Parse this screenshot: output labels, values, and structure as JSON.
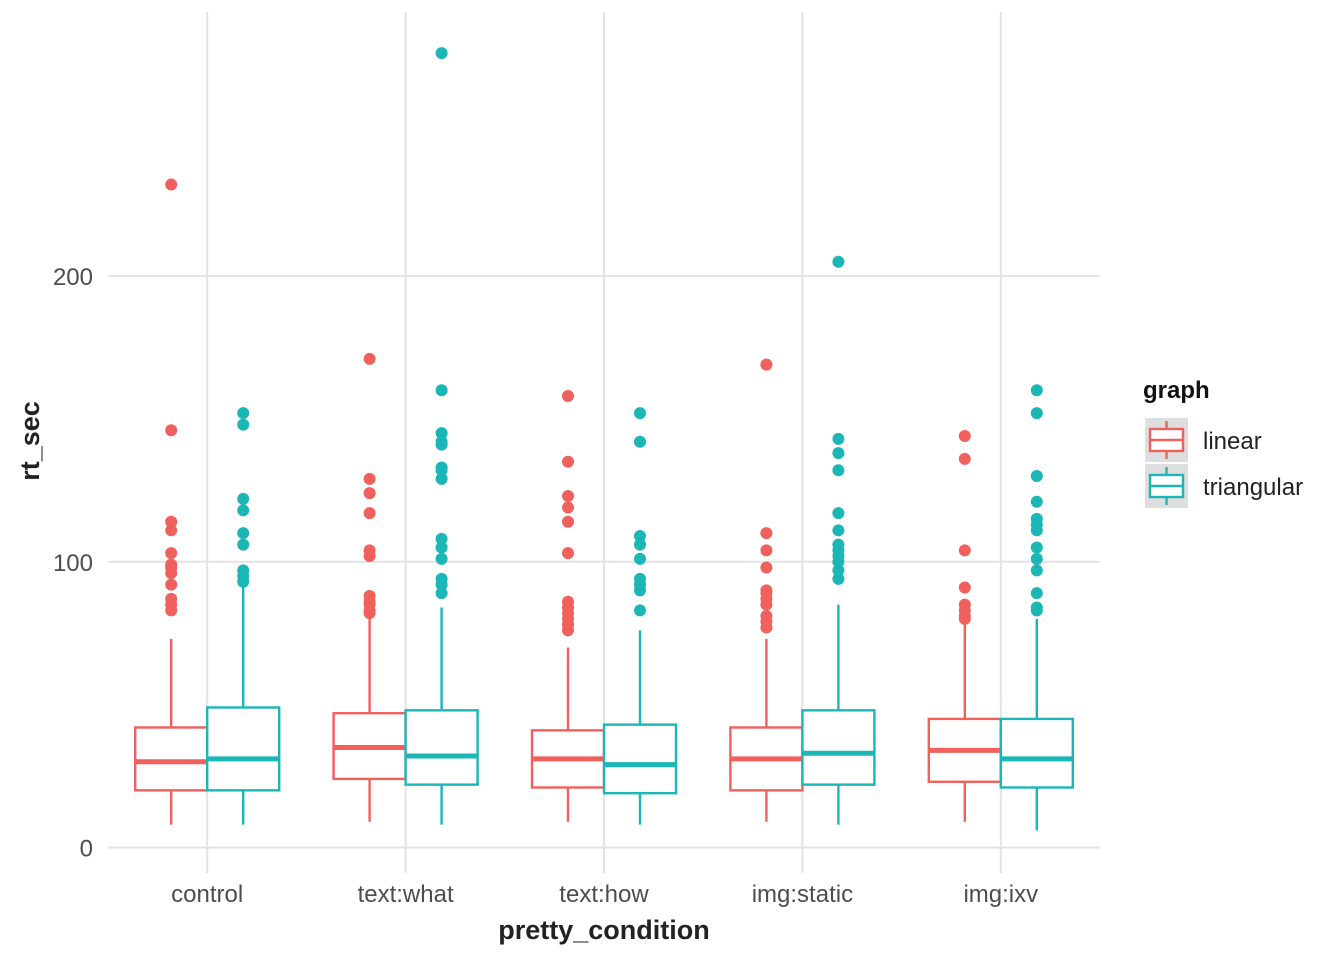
{
  "chart_data": {
    "type": "boxplot",
    "xlabel": "pretty_condition",
    "ylabel": "rt_sec",
    "categories": [
      "control",
      "text:what",
      "text:how",
      "img:static",
      "img:ixv"
    ],
    "y_ticks": [
      "0",
      "100",
      "200"
    ],
    "y_tick_values": [
      0,
      100,
      200
    ],
    "ylim": [
      -9,
      292
    ],
    "grid": true,
    "legend": {
      "title": "graph",
      "placement": "right"
    },
    "series": [
      {
        "name": "linear",
        "color": "#F0605D",
        "boxes": [
          {
            "min": 8,
            "q1": 20,
            "median": 30,
            "q3": 42,
            "max": 73,
            "outliers": [
              83,
              85,
              87,
              92,
              96,
              98,
              99,
              103,
              111,
              114,
              146,
              232
            ]
          },
          {
            "min": 9,
            "q1": 24,
            "median": 35,
            "q3": 47,
            "max": 80,
            "outliers": [
              82,
              83,
              85,
              86,
              88,
              102,
              104,
              117,
              124,
              129,
              171
            ]
          },
          {
            "min": 9,
            "q1": 21,
            "median": 31,
            "q3": 41,
            "max": 70,
            "outliers": [
              76,
              78,
              80,
              82,
              84,
              86,
              103,
              114,
              119,
              123,
              135,
              158
            ]
          },
          {
            "min": 9,
            "q1": 20,
            "median": 31,
            "q3": 42,
            "max": 73,
            "outliers": [
              77,
              79,
              81,
              85,
              87,
              89,
              90,
              98,
              104,
              110,
              169
            ]
          },
          {
            "min": 9,
            "q1": 23,
            "median": 34,
            "q3": 45,
            "max": 78,
            "outliers": [
              80,
              81,
              83,
              85,
              91,
              104,
              136,
              144
            ]
          }
        ]
      },
      {
        "name": "triangular",
        "color": "#1BB6B6",
        "boxes": [
          {
            "min": 8,
            "q1": 20,
            "median": 31,
            "q3": 49,
            "max": 91,
            "outliers": [
              93,
              95,
              97,
              106,
              110,
              118,
              122,
              148,
              152
            ]
          },
          {
            "min": 8,
            "q1": 22,
            "median": 32,
            "q3": 48,
            "max": 84,
            "outliers": [
              89,
              92,
              94,
              101,
              105,
              108,
              129,
              132,
              133,
              141,
              142,
              145,
              160,
              278
            ]
          },
          {
            "min": 8,
            "q1": 19,
            "median": 29,
            "q3": 43,
            "max": 76,
            "outliers": [
              83,
              90,
              92,
              94,
              101,
              106,
              109,
              142,
              152
            ]
          },
          {
            "min": 8,
            "q1": 22,
            "median": 33,
            "q3": 48,
            "max": 85,
            "outliers": [
              94,
              97,
              100,
              102,
              104,
              106,
              111,
              117,
              132,
              138,
              143,
              205
            ]
          },
          {
            "min": 6,
            "q1": 21,
            "median": 31,
            "q3": 45,
            "max": 80,
            "outliers": [
              83,
              84,
              89,
              97,
              101,
              105,
              111,
              113,
              115,
              121,
              130,
              152,
              160
            ]
          }
        ]
      }
    ]
  }
}
